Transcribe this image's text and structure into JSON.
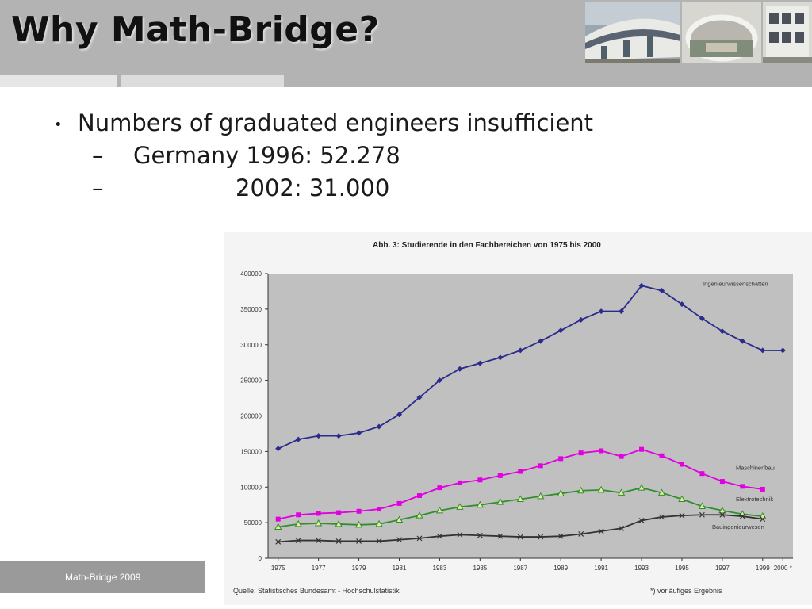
{
  "slide": {
    "title": "Why Math-Bridge?",
    "bullet": "Numbers of graduated engineers insufficient",
    "subs": [
      {
        "dash": "–",
        "text": "Germany 1996: 52.278"
      },
      {
        "dash": "–",
        "text": "              2002: 31.000"
      }
    ],
    "footer": "Math-Bridge  2009"
  },
  "chart_data": {
    "type": "line",
    "title": "Abb. 3: Studierende in den Fachbereichen von 1975 bis 2000",
    "source": "Quelle: Statistisches Bundesamt - Hochschulstatistik",
    "footnote": "*) vorläufiges Ergebnis",
    "ylim": [
      0,
      400000
    ],
    "y_ticks": [
      "0",
      "50000",
      "100000",
      "150000",
      "200000",
      "250000",
      "300000",
      "350000",
      "400000"
    ],
    "x_ticks": [
      "1975",
      "1977",
      "1979",
      "1981",
      "1983",
      "1985",
      "1987",
      "1989",
      "1991",
      "1993",
      "1995",
      "1997",
      "1999",
      "2000 *"
    ],
    "grid": false,
    "background": "#c0c0c0",
    "series": [
      {
        "name": "Ingenieurwissenschaften",
        "color": "#2b2b8c",
        "marker": "diamond",
        "x": [
          1975,
          1976,
          1977,
          1978,
          1979,
          1980,
          1981,
          1982,
          1983,
          1984,
          1985,
          1986,
          1987,
          1988,
          1989,
          1990,
          1991,
          1992,
          1993,
          1994,
          1995,
          1996,
          1997,
          1998,
          1999,
          2000
        ],
        "y": [
          154000,
          167000,
          172000,
          172000,
          176000,
          185000,
          202000,
          226000,
          250000,
          266000,
          274000,
          282000,
          292000,
          305000,
          320000,
          335000,
          347000,
          347000,
          383000,
          376000,
          357000,
          337000,
          319000,
          305000,
          292000,
          292000
        ]
      },
      {
        "name": "Maschinenbau",
        "color": "#e000e0",
        "marker": "square",
        "x": [
          1975,
          1976,
          1977,
          1978,
          1979,
          1980,
          1981,
          1982,
          1983,
          1984,
          1985,
          1986,
          1987,
          1988,
          1989,
          1990,
          1991,
          1992,
          1993,
          1994,
          1995,
          1996,
          1997,
          1998,
          1999
        ],
        "y": [
          55000,
          61000,
          63000,
          64000,
          66000,
          69000,
          77000,
          88000,
          99000,
          106000,
          110000,
          116000,
          122000,
          130000,
          140000,
          148000,
          151000,
          143000,
          153000,
          144000,
          132000,
          119000,
          108000,
          101000,
          97000
        ]
      },
      {
        "name": "Elektrotechnik",
        "color": "#2f8f2f",
        "marker": "triangle",
        "x": [
          1975,
          1976,
          1977,
          1978,
          1979,
          1980,
          1981,
          1982,
          1983,
          1984,
          1985,
          1986,
          1987,
          1988,
          1989,
          1990,
          1991,
          1992,
          1993,
          1994,
          1995,
          1996,
          1997,
          1998,
          1999
        ],
        "y": [
          44000,
          48000,
          49000,
          48000,
          47000,
          48000,
          54000,
          60000,
          67000,
          72000,
          75000,
          79000,
          83000,
          87000,
          91000,
          95000,
          96000,
          92000,
          99000,
          92000,
          83000,
          73000,
          67000,
          62000,
          59000
        ]
      },
      {
        "name": "Bauingenieurwesen",
        "color": "#333333",
        "marker": "x",
        "x": [
          1975,
          1976,
          1977,
          1978,
          1979,
          1980,
          1981,
          1982,
          1983,
          1984,
          1985,
          1986,
          1987,
          1988,
          1989,
          1990,
          1991,
          1992,
          1993,
          1994,
          1995,
          1996,
          1997,
          1998,
          1999
        ],
        "y": [
          23000,
          25000,
          25000,
          24000,
          24000,
          24000,
          26000,
          28000,
          31000,
          33000,
          32000,
          31000,
          30000,
          30000,
          31000,
          34000,
          38000,
          42000,
          53000,
          58000,
          60000,
          61000,
          61000,
          59000,
          55000
        ]
      }
    ]
  }
}
